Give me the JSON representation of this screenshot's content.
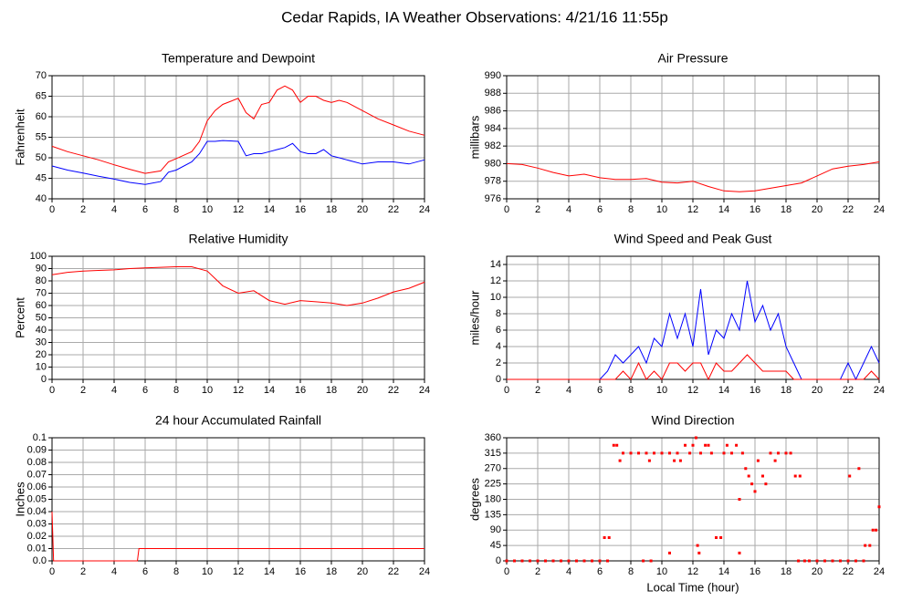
{
  "title": "Cedar Rapids, IA Weather Observations: 4/21/16 11:55p",
  "chart_data": [
    {
      "type": "line",
      "title": "Temperature and Dewpoint",
      "ylabel": "Fahrenheit",
      "x": [
        0,
        1,
        2,
        3,
        4,
        5,
        6,
        7,
        7.5,
        8,
        9,
        9.5,
        10,
        10.5,
        11,
        12,
        12.5,
        13,
        13.5,
        14,
        14.5,
        15,
        15.5,
        16,
        16.5,
        17,
        17.5,
        18,
        18.5,
        19,
        20,
        21,
        22,
        23,
        24
      ],
      "series": [
        {
          "color": "#ff0000",
          "values": [
            52.8,
            51.5,
            50.5,
            49.5,
            48.3,
            47.2,
            46.2,
            46.8,
            49,
            49.8,
            51.5,
            54,
            59,
            61.5,
            63,
            64.5,
            61,
            59.5,
            63,
            63.5,
            66.5,
            67.5,
            66.5,
            63.5,
            65,
            65,
            64,
            63.5,
            64,
            63.5,
            61.5,
            59.5,
            58,
            56.5,
            55.5
          ]
        },
        {
          "color": "#0000ff",
          "values": [
            48,
            47,
            46.3,
            45.5,
            44.8,
            44,
            43.5,
            44.2,
            46.5,
            47,
            49,
            51,
            54,
            54,
            54.2,
            54,
            50.5,
            51,
            51,
            51.5,
            52,
            52.5,
            53.5,
            51.5,
            51,
            51,
            52,
            50.5,
            50,
            49.5,
            48.5,
            49,
            49,
            48.5,
            49.5
          ]
        }
      ],
      "xlim": [
        0,
        24
      ],
      "xticks": [
        0,
        2,
        4,
        6,
        8,
        10,
        12,
        14,
        16,
        18,
        20,
        22,
        24
      ],
      "ylim": [
        40,
        70
      ],
      "yticks": [
        40,
        45,
        50,
        55,
        60,
        65,
        70
      ],
      "grid": true
    },
    {
      "type": "line",
      "title": "Air Pressure",
      "ylabel": "millibars",
      "x": [
        0,
        1,
        2,
        3,
        4,
        5,
        6,
        7,
        8,
        9,
        10,
        11,
        12,
        13,
        14,
        15,
        16,
        17,
        18,
        19,
        20,
        21,
        22,
        23,
        24
      ],
      "series": [
        {
          "color": "#ff0000",
          "values": [
            980,
            979.9,
            979.5,
            979,
            978.6,
            978.8,
            978.4,
            978.2,
            978.2,
            978.3,
            977.9,
            977.8,
            978,
            977.4,
            976.9,
            976.8,
            976.9,
            977.2,
            977.5,
            977.8,
            978.6,
            979.4,
            979.7,
            979.9,
            980.2
          ]
        }
      ],
      "xlim": [
        0,
        24
      ],
      "xticks": [
        0,
        2,
        4,
        6,
        8,
        10,
        12,
        14,
        16,
        18,
        20,
        22,
        24
      ],
      "ylim": [
        976,
        990
      ],
      "yticks": [
        976,
        978,
        980,
        982,
        984,
        986,
        988,
        990
      ],
      "grid": true
    },
    {
      "type": "line",
      "title": "Relative Humidity",
      "ylabel": "Percent",
      "x": [
        0,
        1,
        2,
        3,
        4,
        5,
        6,
        7,
        8,
        9,
        10,
        11,
        12,
        13,
        14,
        15,
        16,
        17,
        18,
        19,
        20,
        21,
        22,
        23,
        24
      ],
      "series": [
        {
          "color": "#ff0000",
          "values": [
            85,
            87,
            88,
            88.5,
            89,
            90,
            90.5,
            91,
            91.5,
            91.5,
            88,
            76,
            70,
            72,
            64,
            61,
            64,
            63,
            62,
            60,
            62,
            66,
            71,
            74,
            79
          ]
        }
      ],
      "xlim": [
        0,
        24
      ],
      "xticks": [
        0,
        2,
        4,
        6,
        8,
        10,
        12,
        14,
        16,
        18,
        20,
        22,
        24
      ],
      "ylim": [
        0,
        100
      ],
      "yticks": [
        0,
        10,
        20,
        30,
        40,
        50,
        60,
        70,
        80,
        90,
        100
      ],
      "grid": true
    },
    {
      "type": "line",
      "title": "Wind Speed and Peak Gust",
      "ylabel": "miles/hour",
      "x": [
        0,
        0.5,
        1,
        1.5,
        2,
        2.5,
        3,
        3.5,
        4,
        4.5,
        5,
        5.5,
        6,
        6.5,
        7,
        7.5,
        8,
        8.5,
        9,
        9.5,
        10,
        10.5,
        11,
        11.5,
        12,
        12.5,
        13,
        13.5,
        14,
        14.5,
        15,
        15.5,
        16,
        16.5,
        17,
        17.5,
        18,
        18.5,
        19,
        19.5,
        20,
        20.5,
        21,
        21.5,
        22,
        22.5,
        23,
        23.5,
        24
      ],
      "series": [
        {
          "color": "#0000ff",
          "values": [
            0,
            0,
            0,
            0,
            0,
            0,
            0,
            0,
            0,
            0,
            0,
            0,
            0,
            1,
            3,
            2,
            3,
            4,
            2,
            5,
            4,
            8,
            5,
            8,
            4,
            11,
            3,
            6,
            5,
            8,
            6,
            12,
            7,
            9,
            6,
            8,
            4,
            2,
            0,
            0,
            0,
            0,
            0,
            0,
            2,
            0,
            2,
            4,
            2
          ]
        },
        {
          "color": "#ff0000",
          "values": [
            0,
            0,
            0,
            0,
            0,
            0,
            0,
            0,
            0,
            0,
            0,
            0,
            0,
            0,
            0,
            1,
            0,
            2,
            0,
            1,
            0,
            2,
            2,
            1,
            2,
            2,
            0,
            2,
            1,
            1,
            2,
            3,
            2,
            1,
            1,
            1,
            1,
            0,
            0,
            0,
            0,
            0,
            0,
            0,
            0,
            0,
            0,
            1,
            0
          ]
        }
      ],
      "xlim": [
        0,
        24
      ],
      "xticks": [
        0,
        2,
        4,
        6,
        8,
        10,
        12,
        14,
        16,
        18,
        20,
        22,
        24
      ],
      "ylim": [
        0,
        15
      ],
      "yticks": [
        0,
        2,
        4,
        6,
        8,
        10,
        12,
        14
      ],
      "grid": true
    },
    {
      "type": "line",
      "title": "24 hour Accumulated Rainfall",
      "ylabel": "Inches",
      "x": [
        0,
        0.1,
        5.5,
        5.6,
        24
      ],
      "series": [
        {
          "color": "#ff0000",
          "values": [
            0.04,
            0,
            0,
            0.01,
            0.01
          ]
        }
      ],
      "xlim": [
        0,
        24
      ],
      "xticks": [
        0,
        2,
        4,
        6,
        8,
        10,
        12,
        14,
        16,
        18,
        20,
        22,
        24
      ],
      "ylim": [
        0,
        0.1
      ],
      "yticks": [
        {
          "value": 0,
          "label": "0.0"
        },
        0.01,
        0.02,
        0.03,
        0.04,
        0.05,
        0.06,
        0.07,
        0.08,
        0.09,
        0.1
      ],
      "grid": true
    },
    {
      "type": "scatter",
      "title": "Wind Direction",
      "ylabel": "degrees",
      "xlabel": "Local Time (hour)",
      "color": "#ff0000",
      "x": [
        0,
        0.5,
        1,
        1.5,
        2,
        2.5,
        3,
        3.5,
        4,
        4.5,
        5,
        5.5,
        6,
        6.5,
        6.3,
        6.6,
        6.9,
        7.1,
        7.3,
        7.5,
        8,
        8.5,
        9,
        9.5,
        9.2,
        8.8,
        9.3,
        10,
        10.5,
        11,
        10.8,
        11.2,
        11.5,
        11.8,
        10.5,
        12,
        12.2,
        12.3,
        12.4,
        12.5,
        12.8,
        13,
        13.2,
        13.5,
        13.8,
        14,
        14.2,
        14.5,
        14.8,
        15,
        15,
        15.2,
        15.4,
        15.6,
        15.8,
        16,
        16.2,
        16.5,
        16.7,
        17,
        17.3,
        17.5,
        18,
        18.3,
        18.6,
        18.9,
        18.8,
        19.2,
        19.5,
        20,
        20.5,
        21,
        21.5,
        22,
        22.5,
        23,
        22.1,
        22.7,
        23.1,
        23.4,
        23.6,
        23.8,
        24
      ],
      "values": [
        0,
        0,
        0,
        0,
        0,
        0,
        0,
        0,
        0,
        0,
        0,
        0,
        0,
        0,
        68,
        68,
        338,
        338,
        293,
        315,
        315,
        315,
        315,
        315,
        293,
        0,
        0,
        315,
        315,
        315,
        293,
        293,
        338,
        315,
        23,
        338,
        360,
        45,
        23,
        315,
        338,
        338,
        315,
        68,
        68,
        315,
        338,
        315,
        338,
        180,
        23,
        315,
        270,
        248,
        225,
        203,
        293,
        248,
        225,
        315,
        293,
        315,
        315,
        315,
        248,
        248,
        0,
        0,
        0,
        0,
        0,
        0,
        0,
        0,
        0,
        0,
        248,
        270,
        45,
        45,
        90,
        90,
        158
      ],
      "xlim": [
        0,
        24
      ],
      "xticks": [
        0,
        2,
        4,
        6,
        8,
        10,
        12,
        14,
        16,
        18,
        20,
        22,
        24
      ],
      "ylim": [
        0,
        360
      ],
      "yticks": [
        0,
        45,
        90,
        135,
        180,
        225,
        270,
        315,
        360
      ],
      "grid": true
    }
  ]
}
